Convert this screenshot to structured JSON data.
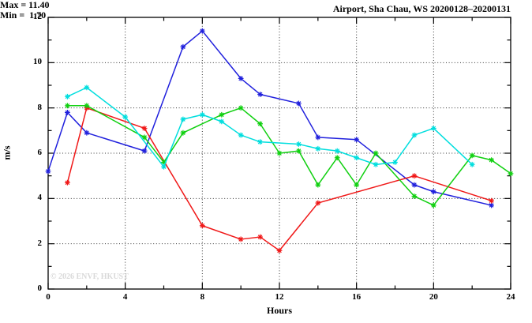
{
  "chart_data": {
    "type": "line",
    "title": "Airport, Sha Chau, WS 20200128–20200131",
    "xlabel": "Hours",
    "ylabel": "m/s",
    "xlim": [
      0,
      24
    ],
    "ylim": [
      0,
      12
    ],
    "x_major_ticks": [
      0,
      4,
      8,
      12,
      16,
      20,
      24
    ],
    "x_minor_ticks": [
      2,
      6,
      10,
      14,
      18,
      22
    ],
    "y_major_ticks": [
      0,
      2,
      4,
      6,
      8,
      10,
      12
    ],
    "y_minor_ticks": [
      1,
      3,
      5,
      7,
      9,
      11
    ],
    "x_gridlines": [
      4,
      8,
      12,
      16,
      20
    ],
    "y_gridlines": [
      2,
      4,
      6,
      8,
      10
    ],
    "grid_style": "dotted",
    "legend": "none",
    "marker": "asterisk",
    "annotations": {
      "max": "Max = 11.40",
      "min": "Min =  1.70"
    },
    "watermark": "© 2026 ENVF, HKUST",
    "series": [
      {
        "name": "series-blue",
        "color": "#2020dd",
        "x": [
          0,
          1,
          2,
          5,
          7,
          8,
          10,
          11,
          13,
          14,
          16,
          19,
          20,
          23
        ],
        "y": [
          5.2,
          7.8,
          6.9,
          6.1,
          10.7,
          11.4,
          9.3,
          8.6,
          8.2,
          6.7,
          6.6,
          4.6,
          4.3,
          3.7
        ]
      },
      {
        "name": "series-red",
        "color": "#f01818",
        "x": [
          1,
          2,
          5,
          8,
          10,
          11,
          12,
          14,
          19,
          23
        ],
        "y": [
          4.7,
          8.0,
          7.1,
          2.8,
          2.2,
          2.3,
          1.7,
          3.8,
          5.0,
          3.9
        ]
      },
      {
        "name": "series-green",
        "color": "#10d010",
        "x": [
          1,
          2,
          5,
          6,
          7,
          9,
          10,
          11,
          12,
          13,
          14,
          15,
          16,
          17,
          19,
          20,
          22,
          23,
          24
        ],
        "y": [
          8.1,
          8.1,
          6.7,
          5.6,
          6.9,
          7.7,
          8.0,
          7.3,
          6.0,
          6.1,
          4.6,
          5.8,
          4.6,
          6.0,
          4.1,
          3.7,
          5.9,
          5.7,
          5.1
        ]
      },
      {
        "name": "series-cyan",
        "color": "#00dede",
        "x": [
          1,
          2,
          4,
          6,
          7,
          8,
          9,
          10,
          11,
          13,
          14,
          15,
          16,
          17,
          18,
          19,
          20,
          22
        ],
        "y": [
          8.5,
          8.9,
          7.6,
          5.4,
          7.5,
          7.7,
          7.4,
          6.8,
          6.5,
          6.4,
          6.2,
          6.1,
          5.8,
          5.5,
          5.6,
          6.8,
          7.1,
          5.5
        ]
      }
    ]
  }
}
